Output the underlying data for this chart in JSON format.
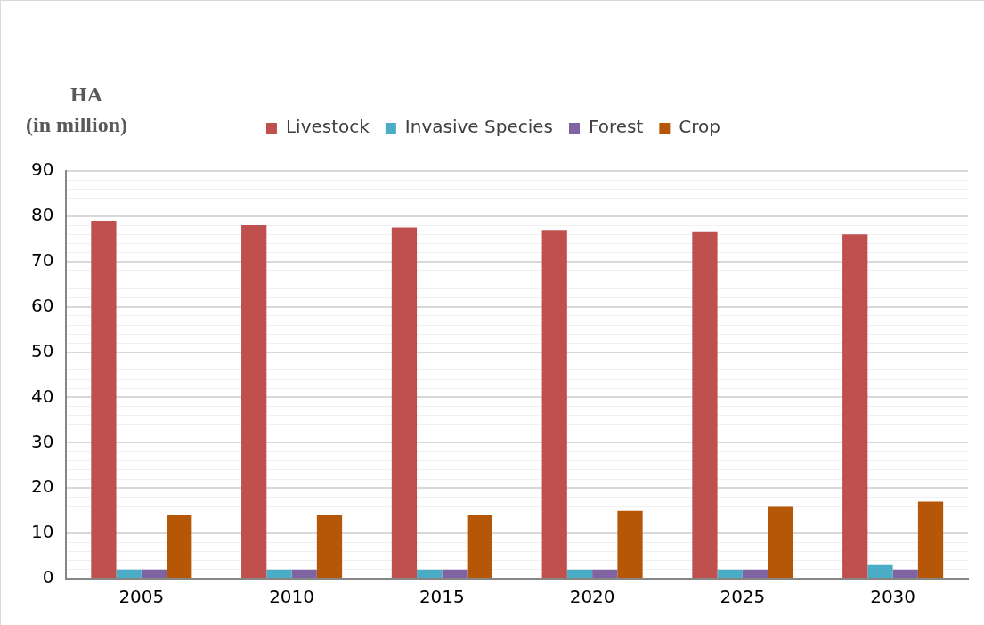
{
  "chart_data": {
    "type": "bar",
    "ylabel": "HA (in million)",
    "categories": [
      "2005",
      "2010",
      "2015",
      "2020",
      "2025",
      "2030"
    ],
    "series": [
      {
        "name": "Livestock",
        "color": "#c0504d",
        "values": [
          79,
          78,
          77.5,
          77,
          76.5,
          76
        ]
      },
      {
        "name": "Invasive Species",
        "color": "#4bacc6",
        "values": [
          2,
          2,
          2,
          2,
          2,
          3
        ]
      },
      {
        "name": "Forest",
        "color": "#8064a2",
        "values": [
          2,
          2,
          2,
          2,
          2,
          2
        ]
      },
      {
        "name": "Crop",
        "color": "#b65708",
        "values": [
          14,
          14,
          14,
          15,
          16,
          17
        ]
      }
    ],
    "ylim": [
      0,
      90
    ],
    "yticks": [
      0,
      {
        "value": 2,
        "label": null
      },
      {
        "value": 4,
        "label": null
      },
      {
        "value": 6,
        "label": null
      },
      {
        "value": 8,
        "label": null
      },
      10,
      {
        "value": 12,
        "label": null
      },
      {
        "value": 14,
        "label": null
      },
      {
        "value": 16,
        "label": null
      },
      {
        "value": 18,
        "label": null
      },
      20,
      {
        "value": 22,
        "label": null
      },
      {
        "value": 24,
        "label": null
      },
      {
        "value": 26,
        "label": null
      },
      {
        "value": 28,
        "label": null
      },
      30,
      {
        "value": 32,
        "label": null
      },
      {
        "value": 34,
        "label": null
      },
      {
        "value": 36,
        "label": null
      },
      {
        "value": 38,
        "label": null
      },
      40,
      {
        "value": 42,
        "label": null
      },
      {
        "value": 44,
        "label": null
      },
      {
        "value": 46,
        "label": null
      },
      {
        "value": 48,
        "label": null
      },
      50,
      {
        "value": 52,
        "label": null
      },
      {
        "value": 54,
        "label": null
      },
      {
        "value": 56,
        "label": null
      },
      {
        "value": 58,
        "label": null
      },
      60,
      {
        "value": 62,
        "label": null
      },
      {
        "value": 64,
        "label": null
      },
      {
        "value": 66,
        "label": null
      },
      {
        "value": 68,
        "label": null
      },
      70,
      {
        "value": 72,
        "label": null
      },
      {
        "value": 74,
        "label": null
      },
      {
        "value": 76,
        "label": null
      },
      {
        "value": 78,
        "label": null
      },
      80,
      {
        "value": 82,
        "label": null
      },
      {
        "value": 84,
        "label": null
      },
      {
        "value": 86,
        "label": null
      },
      {
        "value": 88,
        "label": null
      },
      90
    ],
    "grid": "y",
    "legend": "top"
  }
}
